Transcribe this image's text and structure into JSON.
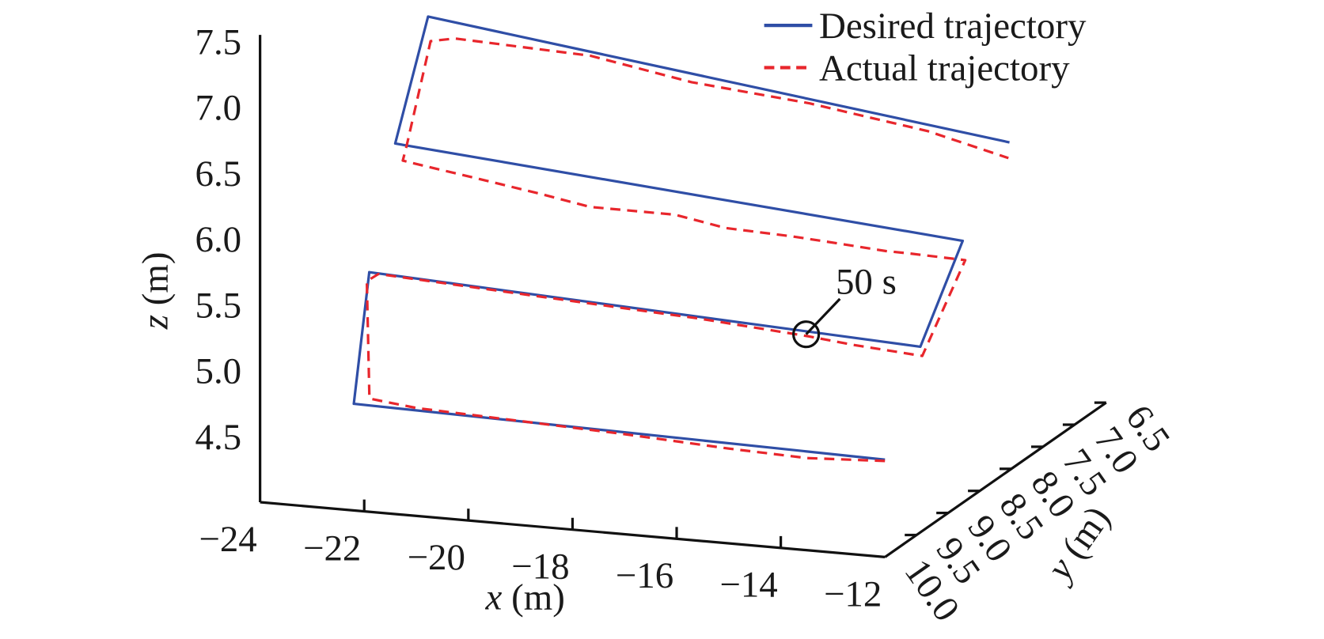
{
  "chart_data": {
    "type": "line3d",
    "xlabel": {
      "var": "x",
      "unit": " (m)"
    },
    "ylabel": {
      "var": "y",
      "unit": " (m)"
    },
    "zlabel": {
      "var": "z",
      "unit": " (m)"
    },
    "xlim": [
      -24,
      -12
    ],
    "ylim": [
      6.5,
      10.0
    ],
    "zlim": [
      4.0,
      7.5
    ],
    "xticks": [
      "−24",
      "−22",
      "−20",
      "−18",
      "−16",
      "−14",
      "−12"
    ],
    "xtick_values": [
      -24,
      -22,
      -20,
      -18,
      -16,
      -14,
      -12
    ],
    "yticks": [
      "10.0",
      "9.5",
      "9.0",
      "8.5",
      "8.0",
      "7.5",
      "7.0",
      "6.5"
    ],
    "ytick_values": [
      10.0,
      9.5,
      9.0,
      8.5,
      8.0,
      7.5,
      7.0,
      6.5
    ],
    "zticks": [
      "7.5",
      "7.0",
      "6.5",
      "6.0",
      "5.5",
      "5.0",
      "4.5"
    ],
    "ztick_values": [
      7.5,
      7.0,
      6.5,
      6.0,
      5.5,
      5.0,
      4.5
    ],
    "grid": false,
    "legend_placement": "top-right",
    "series": [
      {
        "name": "Desired trajectory",
        "color": "#2f4ea6",
        "style": "solid",
        "points": [
          [
            -12.0,
            10.0,
            4.74
          ],
          [
            -22.2,
            10.0,
            4.81
          ],
          [
            -22.0,
            9.92,
            5.79
          ],
          [
            -12.0,
            9.44,
            5.41
          ],
          [
            -12.0,
            8.77,
            5.99
          ],
          [
            -22.0,
            9.51,
            6.63
          ],
          [
            -22.0,
            8.99,
            7.42
          ],
          [
            -12.0,
            8.03,
            6.49
          ]
        ]
      },
      {
        "name": "Actual trajectory",
        "color": "#e8262c",
        "style": "dashed",
        "points": [
          [
            -12.0,
            10.0,
            4.73
          ],
          [
            -13.5,
            10.0,
            4.7
          ],
          [
            -15.0,
            10.0,
            4.72
          ],
          [
            -17.0,
            10.0,
            4.76
          ],
          [
            -19.0,
            10.0,
            4.79
          ],
          [
            -21.0,
            10.0,
            4.82
          ],
          [
            -21.9,
            10.0,
            4.86
          ],
          [
            -21.95,
            10.0,
            5.75
          ],
          [
            -21.8,
            9.94,
            5.79
          ],
          [
            -19.0,
            9.81,
            5.68
          ],
          [
            -16.0,
            9.66,
            5.56
          ],
          [
            -14.0,
            9.56,
            5.46
          ],
          [
            -13.2,
            9.52,
            5.41
          ],
          [
            -12.0,
            9.41,
            5.33
          ],
          [
            -12.0,
            8.73,
            5.83
          ],
          [
            -12.99,
            8.8,
            5.87
          ],
          [
            -13.41,
            8.82,
            5.88
          ],
          [
            -14.31,
            8.88,
            5.93
          ],
          [
            -15.06,
            8.93,
            5.97
          ],
          [
            -16.26,
            9.01,
            6.02
          ],
          [
            -17.16,
            9.07,
            6.11
          ],
          [
            -18.67,
            9.17,
            6.15
          ],
          [
            -19.57,
            9.23,
            6.24
          ],
          [
            -20.77,
            9.31,
            6.35
          ],
          [
            -21.67,
            9.37,
            6.43
          ],
          [
            -22.0,
            9.39,
            6.46
          ],
          [
            -22.0,
            9.33,
            6.55
          ],
          [
            -22.0,
            8.95,
            7.22
          ],
          [
            -21.62,
            8.88,
            7.23
          ],
          [
            -19.27,
            8.67,
            7.11
          ],
          [
            -17.51,
            8.52,
            6.92
          ],
          [
            -15.46,
            8.34,
            6.77
          ],
          [
            -13.41,
            8.16,
            6.57
          ],
          [
            -12.02,
            8.03,
            6.37
          ]
        ]
      }
    ],
    "annotation": {
      "text": "50 s",
      "point": [
        -14.06,
        9.55,
        5.47
      ]
    }
  }
}
